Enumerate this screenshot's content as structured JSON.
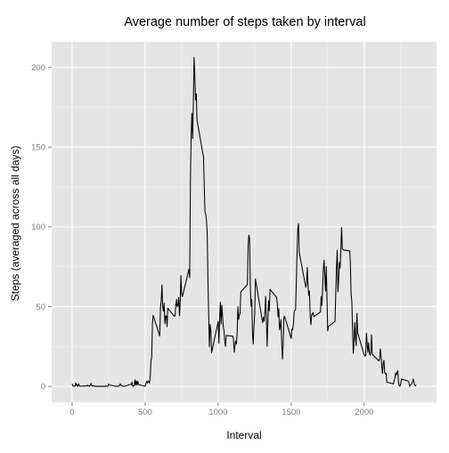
{
  "chart_data": {
    "type": "line",
    "title": "Average number of steps taken by interval",
    "xlabel": "Interval",
    "ylabel": "Steps (averaged across all days)",
    "xlim": [
      -140,
      2495
    ],
    "ylim": [
      -10,
      216
    ],
    "x_ticks": [
      0,
      500,
      1000,
      1500,
      2000
    ],
    "y_ticks": [
      0,
      50,
      100,
      150,
      200
    ],
    "x_tick_labels": [
      "0",
      "500",
      "1000",
      "1500",
      "2000"
    ],
    "y_tick_labels": [
      "0",
      "50",
      "100",
      "150",
      "200"
    ],
    "grid": true,
    "legend": "none",
    "colors": {
      "panel_background": "#e5e5e5",
      "grid_major": "#ffffff",
      "grid_minor": "#f2f2f2",
      "line": "#000000",
      "tick_label": "#7f7f7f",
      "title": "#000000"
    },
    "series": [
      {
        "values": [
          [
            0,
            1.7
          ],
          [
            5,
            0.3
          ],
          [
            10,
            0.1
          ],
          [
            15,
            0.2
          ],
          [
            20,
            0.1
          ],
          [
            25,
            2.1
          ],
          [
            30,
            0.5
          ],
          [
            35,
            0.9
          ],
          [
            40,
            0
          ],
          [
            45,
            1.5
          ],
          [
            50,
            0.3
          ],
          [
            55,
            0.1
          ],
          [
            100,
            0.3
          ],
          [
            105,
            0.7
          ],
          [
            110,
            0.2
          ],
          [
            115,
            0.3
          ],
          [
            120,
            0
          ],
          [
            125,
            1.1
          ],
          [
            130,
            1.8
          ],
          [
            135,
            0.2
          ],
          [
            140,
            0.2
          ],
          [
            145,
            0.4
          ],
          [
            150,
            0.3
          ],
          [
            155,
            0
          ],
          [
            200,
            0
          ],
          [
            230,
            0
          ],
          [
            235,
            0.2
          ],
          [
            240,
            0
          ],
          [
            245,
            0.1
          ],
          [
            250,
            1.5
          ],
          [
            255,
            0.9
          ],
          [
            300,
            0
          ],
          [
            305,
            0
          ],
          [
            310,
            0
          ],
          [
            315,
            0
          ],
          [
            320,
            0.2
          ],
          [
            325,
            0.6
          ],
          [
            330,
            1.6
          ],
          [
            335,
            0.6
          ],
          [
            340,
            0.5
          ],
          [
            345,
            0.1
          ],
          [
            350,
            0
          ],
          [
            355,
            0
          ],
          [
            400,
            1.2
          ],
          [
            405,
            0.9
          ],
          [
            410,
            2.6
          ],
          [
            415,
            0
          ],
          [
            420,
            0.3
          ],
          [
            425,
            0.4
          ],
          [
            430,
            4.1
          ],
          [
            435,
            0.7
          ],
          [
            440,
            3.5
          ],
          [
            445,
            0.8
          ],
          [
            450,
            3.1
          ],
          [
            455,
            1.1
          ],
          [
            500,
            0
          ],
          [
            505,
            1.6
          ],
          [
            510,
            3
          ],
          [
            515,
            2.2
          ],
          [
            520,
            3.3
          ],
          [
            525,
            3
          ],
          [
            530,
            2.1
          ],
          [
            535,
            6.1
          ],
          [
            540,
            16
          ],
          [
            545,
            18.3
          ],
          [
            550,
            39.5
          ],
          [
            555,
            44.5
          ],
          [
            600,
            31.5
          ],
          [
            605,
            49.3
          ],
          [
            610,
            53.8
          ],
          [
            615,
            63.5
          ],
          [
            620,
            50
          ],
          [
            625,
            47.1
          ],
          [
            630,
            52.2
          ],
          [
            635,
            39.3
          ],
          [
            640,
            44
          ],
          [
            645,
            44.2
          ],
          [
            650,
            37.4
          ],
          [
            655,
            49
          ],
          [
            700,
            43.8
          ],
          [
            705,
            44.4
          ],
          [
            710,
            50.5
          ],
          [
            715,
            54.5
          ],
          [
            720,
            49.9
          ],
          [
            725,
            51
          ],
          [
            730,
            55.7
          ],
          [
            735,
            44.3
          ],
          [
            740,
            52.3
          ],
          [
            745,
            69.5
          ],
          [
            750,
            57.8
          ],
          [
            755,
            56.2
          ],
          [
            800,
            73.4
          ],
          [
            805,
            68.2
          ],
          [
            810,
            129.4
          ],
          [
            815,
            157.5
          ],
          [
            820,
            171.2
          ],
          [
            825,
            155.4
          ],
          [
            830,
            177.3
          ],
          [
            835,
            206.2
          ],
          [
            840,
            195.9
          ],
          [
            845,
            179.6
          ],
          [
            850,
            183.4
          ],
          [
            855,
            167
          ],
          [
            900,
            143.5
          ],
          [
            905,
            124
          ],
          [
            910,
            109.1
          ],
          [
            915,
            108.1
          ],
          [
            920,
            103.7
          ],
          [
            925,
            95.9
          ],
          [
            930,
            66.2
          ],
          [
            935,
            45.2
          ],
          [
            940,
            24.8
          ],
          [
            945,
            38.8
          ],
          [
            950,
            35
          ],
          [
            955,
            21.1
          ],
          [
            1000,
            40.6
          ],
          [
            1005,
            27
          ],
          [
            1010,
            42.4
          ],
          [
            1015,
            52.7
          ],
          [
            1020,
            38.9
          ],
          [
            1025,
            50.8
          ],
          [
            1030,
            44.3
          ],
          [
            1035,
            37.4
          ],
          [
            1040,
            34.7
          ],
          [
            1045,
            28.3
          ],
          [
            1050,
            25.1
          ],
          [
            1055,
            31.9
          ],
          [
            1100,
            31.4
          ],
          [
            1105,
            29.7
          ],
          [
            1110,
            21.3
          ],
          [
            1115,
            25.5
          ],
          [
            1120,
            28.4
          ],
          [
            1125,
            26.5
          ],
          [
            1130,
            33.4
          ],
          [
            1135,
            50
          ],
          [
            1140,
            42
          ],
          [
            1145,
            44.6
          ],
          [
            1150,
            46
          ],
          [
            1155,
            59.2
          ],
          [
            1200,
            63.9
          ],
          [
            1205,
            87.7
          ],
          [
            1210,
            94.8
          ],
          [
            1215,
            92.8
          ],
          [
            1220,
            63.4
          ],
          [
            1225,
            50.2
          ],
          [
            1230,
            54.5
          ],
          [
            1235,
            32.4
          ],
          [
            1240,
            26.5
          ],
          [
            1245,
            37.7
          ],
          [
            1250,
            45.1
          ],
          [
            1255,
            67.3
          ],
          [
            1300,
            42.3
          ],
          [
            1305,
            39.9
          ],
          [
            1310,
            43.3
          ],
          [
            1315,
            40.98
          ],
          [
            1320,
            46.2
          ],
          [
            1325,
            56.4
          ],
          [
            1330,
            42.8
          ],
          [
            1335,
            25.1
          ],
          [
            1340,
            39.9
          ],
          [
            1345,
            53.5
          ],
          [
            1350,
            47.3
          ],
          [
            1355,
            60.8
          ],
          [
            1400,
            55.8
          ],
          [
            1405,
            51.9
          ],
          [
            1410,
            43.6
          ],
          [
            1415,
            48.7
          ],
          [
            1420,
            35.5
          ],
          [
            1425,
            37.5
          ],
          [
            1430,
            41.8
          ],
          [
            1435,
            27.5
          ],
          [
            1440,
            17.1
          ],
          [
            1445,
            26.1
          ],
          [
            1450,
            43.6
          ],
          [
            1455,
            43.8
          ],
          [
            1500,
            30
          ],
          [
            1505,
            36.1
          ],
          [
            1510,
            35.5
          ],
          [
            1515,
            38.8
          ],
          [
            1520,
            45.96
          ],
          [
            1525,
            47.8
          ],
          [
            1530,
            48.1
          ],
          [
            1535,
            65.3
          ],
          [
            1540,
            82.9
          ],
          [
            1545,
            98.7
          ],
          [
            1550,
            102.1
          ],
          [
            1555,
            83.96
          ],
          [
            1600,
            62.1
          ],
          [
            1605,
            64.1
          ],
          [
            1610,
            74.5
          ],
          [
            1615,
            63.2
          ],
          [
            1620,
            56.9
          ],
          [
            1625,
            59.8
          ],
          [
            1630,
            43.9
          ],
          [
            1635,
            38.6
          ],
          [
            1640,
            44.7
          ],
          [
            1645,
            45.5
          ],
          [
            1650,
            46.2
          ],
          [
            1655,
            43.7
          ],
          [
            1700,
            46.6
          ],
          [
            1705,
            56.3
          ],
          [
            1710,
            50.7
          ],
          [
            1715,
            61.2
          ],
          [
            1720,
            73.4
          ],
          [
            1725,
            79.1
          ],
          [
            1730,
            68.9
          ],
          [
            1735,
            59.7
          ],
          [
            1740,
            75.1
          ],
          [
            1745,
            56.5
          ],
          [
            1750,
            34.8
          ],
          [
            1755,
            37.5
          ],
          [
            1800,
            40.7
          ],
          [
            1805,
            58
          ],
          [
            1810,
            74.7
          ],
          [
            1815,
            85.3
          ],
          [
            1820,
            59.3
          ],
          [
            1825,
            67.8
          ],
          [
            1830,
            77.7
          ],
          [
            1835,
            74.2
          ],
          [
            1840,
            85.3
          ],
          [
            1845,
            99.5
          ],
          [
            1850,
            86.6
          ],
          [
            1855,
            85.6
          ],
          [
            1900,
            84.9
          ],
          [
            1905,
            77.8
          ],
          [
            1910,
            58
          ],
          [
            1915,
            53.4
          ],
          [
            1920,
            36.3
          ],
          [
            1925,
            20.7
          ],
          [
            1930,
            27.4
          ],
          [
            1935,
            40
          ],
          [
            1940,
            30.2
          ],
          [
            1945,
            25.5
          ],
          [
            1950,
            45.7
          ],
          [
            1955,
            33.5
          ],
          [
            2000,
            19.6
          ],
          [
            2005,
            19
          ],
          [
            2010,
            19.3
          ],
          [
            2015,
            33.3
          ],
          [
            2020,
            26.8
          ],
          [
            2025,
            21.2
          ],
          [
            2030,
            27.3
          ],
          [
            2035,
            21.3
          ],
          [
            2040,
            19.5
          ],
          [
            2045,
            21.3
          ],
          [
            2050,
            32.3
          ],
          [
            2055,
            20.2
          ],
          [
            2100,
            15.9
          ],
          [
            2105,
            17.2
          ],
          [
            2110,
            23.5
          ],
          [
            2115,
            19.2
          ],
          [
            2120,
            12.5
          ],
          [
            2125,
            8
          ],
          [
            2130,
            14.7
          ],
          [
            2135,
            16.3
          ],
          [
            2140,
            8.7
          ],
          [
            2145,
            7.8
          ],
          [
            2150,
            8.1
          ],
          [
            2155,
            2.6
          ],
          [
            2200,
            1.5
          ],
          [
            2205,
            3.7
          ],
          [
            2210,
            4.8
          ],
          [
            2215,
            8.5
          ],
          [
            2220,
            7.1
          ],
          [
            2225,
            8.7
          ],
          [
            2230,
            9.8
          ],
          [
            2235,
            2.2
          ],
          [
            2240,
            0.3
          ],
          [
            2245,
            0.1
          ],
          [
            2250,
            1.6
          ],
          [
            2255,
            4.6
          ],
          [
            2300,
            3.3
          ],
          [
            2305,
            2.8
          ],
          [
            2310,
            0
          ],
          [
            2315,
            0.8
          ],
          [
            2320,
            1
          ],
          [
            2325,
            1.6
          ],
          [
            2330,
            2.6
          ],
          [
            2335,
            4.7
          ],
          [
            2340,
            3.3
          ],
          [
            2345,
            0.6
          ],
          [
            2350,
            0.2
          ],
          [
            2355,
            1.1
          ]
        ]
      }
    ]
  }
}
